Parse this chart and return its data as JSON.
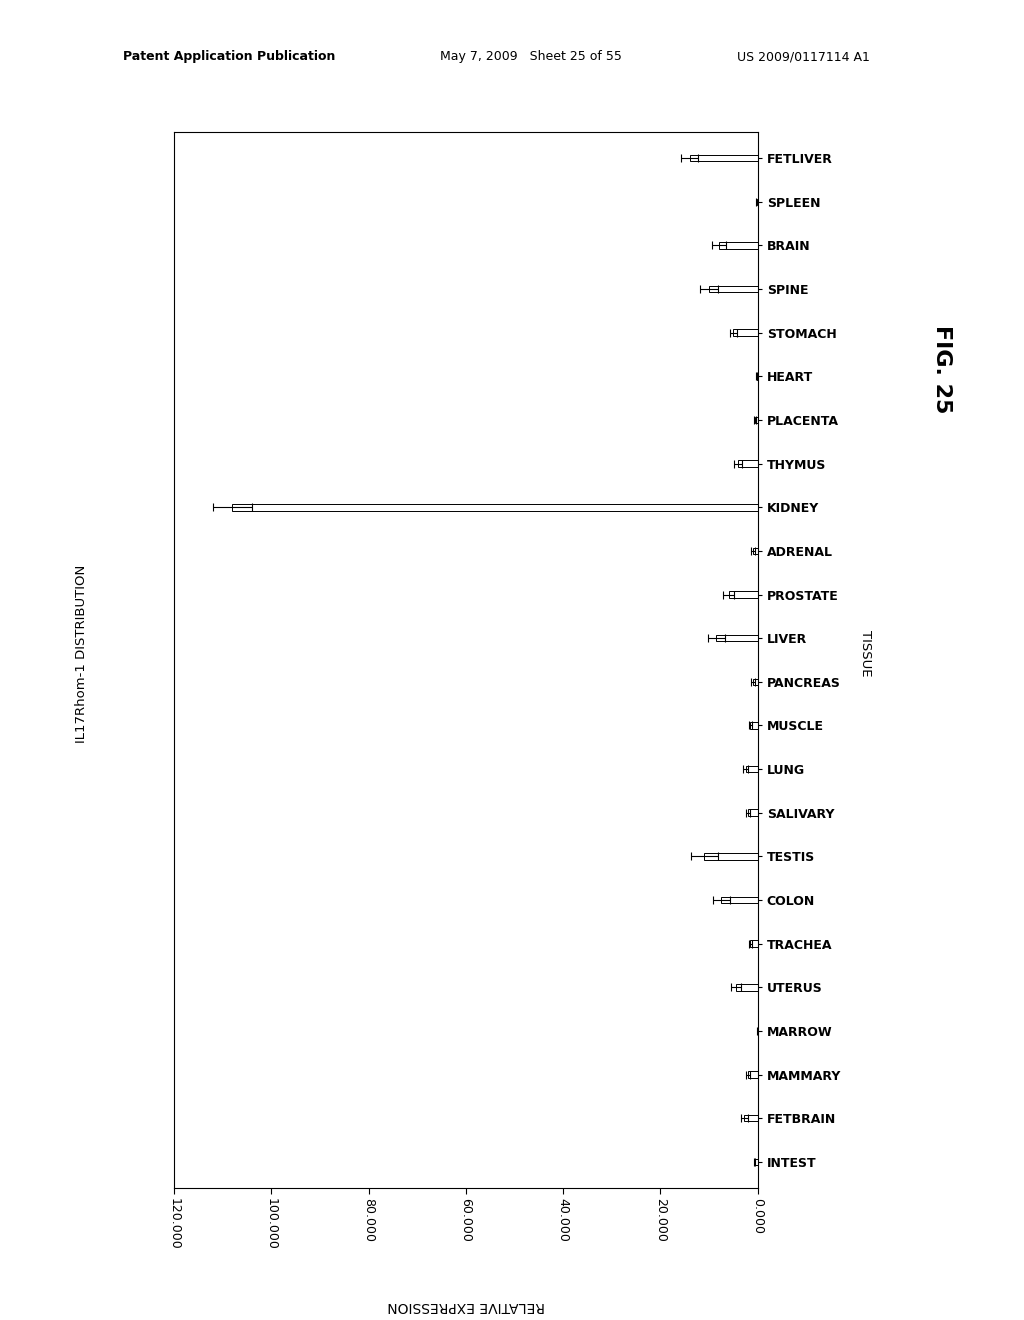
{
  "tissues": [
    "FETLIVER",
    "SPLEEN",
    "BRAIN",
    "SPINE",
    "STOMACH",
    "HEART",
    "PLACENTA",
    "THYMUS",
    "KIDNEY",
    "ADRENAL",
    "PROSTATE",
    "LIVER",
    "PANCREAS",
    "MUSCLE",
    "LUNG",
    "SALIVARY",
    "TESTIS",
    "COLON",
    "TRACHEA",
    "UTERUS",
    "MARROW",
    "MAMMARY",
    "FETBRAIN",
    "INTEST"
  ],
  "values": [
    14000,
    200,
    8000,
    10000,
    5000,
    200,
    500,
    4000,
    108000,
    1000,
    6000,
    8500,
    1000,
    1500,
    2500,
    2000,
    11000,
    7500,
    1500,
    4500,
    100,
    2000,
    2800,
    700
  ],
  "errors": [
    1800,
    150,
    1400,
    1800,
    700,
    100,
    200,
    800,
    4000,
    400,
    1200,
    1800,
    350,
    350,
    500,
    450,
    2800,
    1800,
    350,
    1000,
    70,
    500,
    700,
    150
  ],
  "bar_height": 0.15,
  "xlabel": "RELATIVE EXPRESSION",
  "ylabel": "IL17Rhom-1 DISTRIBUTION",
  "tissue_label": "TISSUE",
  "xlim": [
    0,
    120000
  ],
  "xticks": [
    0,
    20000,
    40000,
    60000,
    80000,
    100000,
    120000
  ],
  "xticklabels": [
    "0.000",
    "20.000",
    "40.000",
    "60.000",
    "80.000",
    "100.000",
    "120.000"
  ],
  "fig_label": "FIG. 25",
  "header_left": "Patent Application Publication",
  "header_mid": "May 7, 2009   Sheet 25 of 55",
  "header_right": "US 2009/0117114 A1"
}
